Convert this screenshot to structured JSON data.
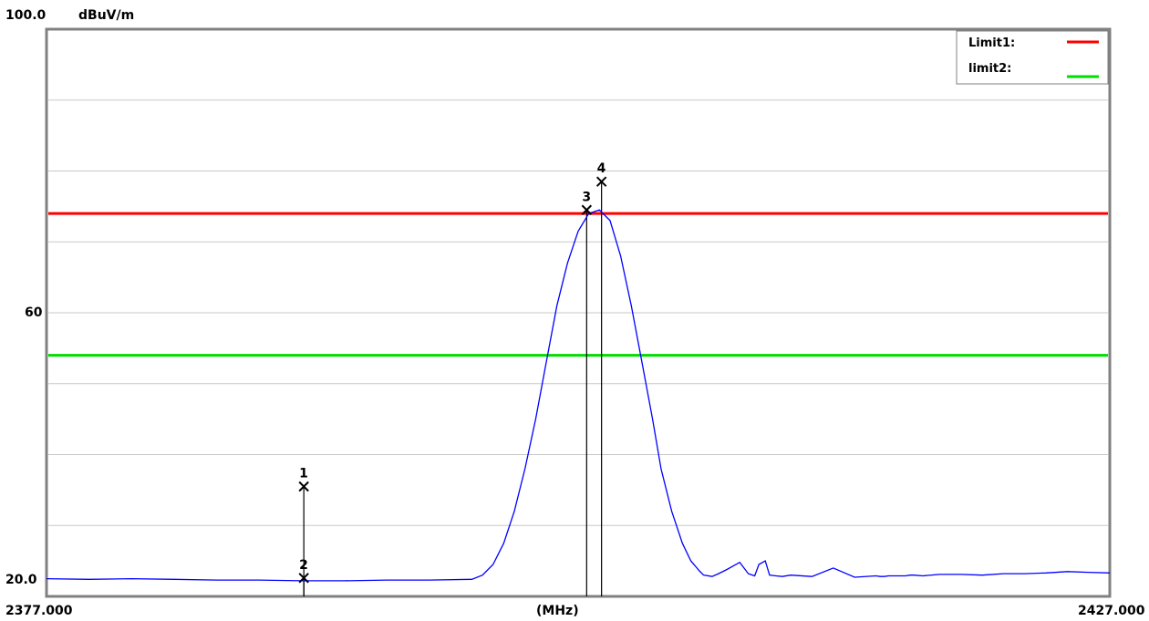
{
  "chart_data": {
    "type": "line",
    "title": "",
    "ylabel": "dBuV/m",
    "xlabel": "(MHz)",
    "xlim": [
      2377.0,
      2427.0
    ],
    "ylim": [
      20.0,
      100.0
    ],
    "y_ticks_labeled": [
      "100.0",
      "60",
      "20.0"
    ],
    "x_ticks_labeled": [
      "2377.000",
      "2427.000"
    ],
    "grid": true,
    "grid_y_values": [
      30,
      40,
      50,
      60,
      70,
      80,
      90
    ],
    "limits": [
      {
        "name": "Limit1:",
        "value": 74,
        "color": "#ff0000"
      },
      {
        "name": "limit2:",
        "value": 54,
        "color": "#00dd00"
      }
    ],
    "legend_position": "top-right",
    "series": [
      {
        "color": "#0000ff",
        "x": [
          2377.0,
          2379.0,
          2381.0,
          2383.0,
          2385.0,
          2387.0,
          2389.0,
          2391.0,
          2393.0,
          2395.0,
          2397.0,
          2397.5,
          2398.0,
          2398.5,
          2399.0,
          2399.5,
          2400.0,
          2400.5,
          2401.0,
          2401.5,
          2402.0,
          2402.5,
          2403.0,
          2403.5,
          2404.0,
          2404.5,
          2405.0,
          2405.5,
          2405.9,
          2406.4,
          2406.9,
          2407.3,
          2407.7,
          2407.9,
          2408.3,
          2408.6,
          2409.0,
          2409.3,
          2409.6,
          2410.0,
          2410.3,
          2410.5,
          2410.8,
          2411.0,
          2411.3,
          2411.6,
          2412.0,
          2413.0,
          2414.0,
          2415.0,
          2416.0,
          2416.2,
          2416.4,
          2416.6,
          2417.0,
          2417.4,
          2417.6,
          2417.8,
          2418.2,
          2419.0,
          2420.0,
          2421.0,
          2422.0,
          2423.0,
          2424.0,
          2425.0,
          2426.0,
          2427.0
        ],
        "y": [
          22.5,
          22.4,
          22.5,
          22.4,
          22.3,
          22.3,
          22.2,
          22.2,
          22.3,
          22.3,
          22.4,
          23.0,
          24.5,
          27.5,
          32.0,
          38.0,
          45.0,
          53.0,
          61.0,
          67.0,
          71.5,
          74.0,
          74.5,
          73.0,
          68.0,
          61.0,
          53.0,
          45.0,
          38.0,
          32.0,
          27.5,
          25.0,
          23.6,
          23.0,
          22.8,
          23.2,
          23.8,
          24.3,
          24.8,
          23.2,
          22.9,
          24.5,
          25.0,
          23.0,
          22.9,
          22.8,
          23.0,
          22.8,
          24.0,
          22.7,
          22.9,
          22.8,
          22.8,
          22.9,
          22.9,
          22.9,
          23.0,
          23.0,
          22.9,
          23.1,
          23.1,
          23.0,
          23.2,
          23.2,
          23.3,
          23.5,
          23.4,
          23.3
        ]
      }
    ],
    "markers": [
      {
        "label": "1",
        "x": 2389.1,
        "y": 35.5
      },
      {
        "label": "2",
        "x": 2389.1,
        "y": 22.6
      },
      {
        "label": "3",
        "x": 2402.4,
        "y": 74.5
      },
      {
        "label": "4",
        "x": 2403.1,
        "y": 78.5
      }
    ]
  }
}
